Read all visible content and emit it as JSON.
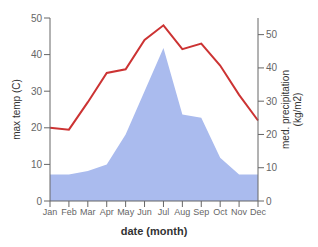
{
  "chart_data": {
    "type": "line",
    "categories": [
      "Jan",
      "Feb",
      "Mar",
      "Apr",
      "May",
      "Jun",
      "Jul",
      "Aug",
      "Sep",
      "Oct",
      "Nov",
      "Dec"
    ],
    "series": [
      {
        "type": "area",
        "color": "#aabbee",
        "axis": "y2",
        "values": [
          8,
          8,
          9,
          11,
          20,
          33,
          46,
          26,
          25,
          13,
          8,
          8
        ]
      },
      {
        "type": "line",
        "color": "#cc3333",
        "values": [
          20,
          19.5,
          27,
          35,
          36,
          44,
          48,
          41.5,
          43,
          37,
          29,
          22
        ]
      }
    ],
    "xlabel": "date (month)",
    "ylabel": "max temp (C)",
    "y2label": "med. precipitation\n(kg/m2)",
    "ylim": [
      0,
      50
    ],
    "yticks": [
      0,
      10,
      20,
      30,
      40,
      50
    ],
    "y2lim": [
      0,
      55
    ],
    "y2ticks": [
      0,
      10,
      20,
      30,
      40,
      50
    ],
    "grid": false
  }
}
